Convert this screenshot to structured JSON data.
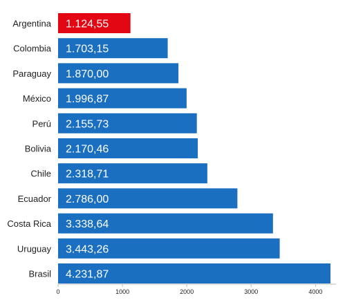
{
  "chart_data": {
    "type": "bar",
    "orientation": "horizontal",
    "title": "",
    "xlabel": "",
    "ylabel": "",
    "categories": [
      "Argentina",
      "Colombia",
      "Paraguay",
      "México",
      "Perú",
      "Bolivia",
      "Chile",
      "Ecuador",
      "Costa Rica",
      "Uruguay",
      "Brasil"
    ],
    "values": [
      1124.55,
      1703.15,
      1870.0,
      1996.87,
      2155.73,
      2170.46,
      2318.71,
      2786.0,
      3338.64,
      3443.26,
      4231.87
    ],
    "value_labels": [
      "1.124,55",
      "1.703,15",
      "1.870,00",
      "1.996,87",
      "2.155,73",
      "2.170,46",
      "2.318,71",
      "2.786,00",
      "3.338,64",
      "3.443,26",
      "4.231,87"
    ],
    "bar_colors": [
      "#e30613",
      "#1a6fc0",
      "#1a6fc0",
      "#1a6fc0",
      "#1a6fc0",
      "#1a6fc0",
      "#1a6fc0",
      "#1a6fc0",
      "#1a6fc0",
      "#1a6fc0",
      "#1a6fc0"
    ],
    "xlim": [
      0,
      4400
    ],
    "x_ticks": [
      0,
      1000,
      2000,
      3000,
      4000
    ],
    "x_tick_labels": [
      "0",
      "1000",
      "2000",
      "3000",
      "4000"
    ],
    "grid": false,
    "legend": "none"
  }
}
